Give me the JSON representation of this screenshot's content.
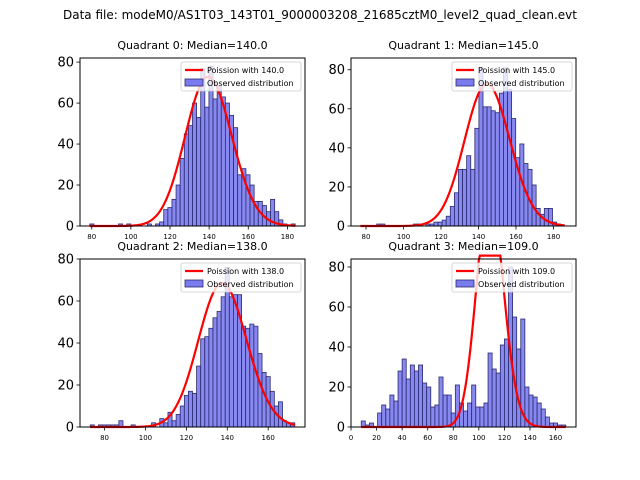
{
  "suptitle": "Data file: modeM0/AS1T03_143T01_9000003208_21685cztM0_level2_quad_clean.evt",
  "legend": {
    "line_label_prefix": "Poission with ",
    "bar_label": "Observed distribution"
  },
  "colors": {
    "bar_fill": "#7b7bf0",
    "bar_edge": "#2b2b6e",
    "poisson_line": "#ff0000"
  },
  "chart_data": [
    {
      "type": "bar",
      "title": "Quadrant 0: Median=140.0",
      "median": 140.0,
      "poisson_label": "Poission with 140.0",
      "bin_start": 79,
      "bin_width": 2.1,
      "values": [
        1,
        0,
        0,
        0,
        0,
        0,
        0,
        1,
        0,
        1,
        0,
        0,
        0,
        0,
        1,
        0,
        1,
        2,
        8,
        9,
        13,
        20,
        33,
        45,
        49,
        60,
        53,
        77,
        58,
        78,
        62,
        68,
        63,
        60,
        54,
        48,
        25,
        28,
        25,
        20,
        12,
        12,
        10,
        7,
        13,
        7,
        3,
        1,
        0,
        1
      ],
      "xlim": [
        74,
        189
      ],
      "ylim": [
        0,
        82
      ],
      "xticks": [
        80,
        100,
        120,
        140,
        160,
        180
      ],
      "yticks": [
        0,
        20,
        40,
        60,
        80
      ],
      "legend": "top-right"
    },
    {
      "type": "bar",
      "title": "Quadrant 1: Median=145.0",
      "median": 145.0,
      "poisson_label": "Poission with 145.0",
      "bin_start": 77,
      "bin_width": 2.18,
      "values": [
        0,
        0,
        0,
        0,
        1,
        1,
        0,
        0,
        0,
        0,
        0,
        0,
        0,
        1,
        1,
        0,
        1,
        1,
        2,
        2,
        3,
        5,
        10,
        17,
        29,
        29,
        36,
        29,
        50,
        81,
        61,
        61,
        59,
        58,
        68,
        81,
        70,
        55,
        35,
        42,
        32,
        29,
        21,
        9,
        6,
        9,
        9,
        2,
        1,
        0
      ],
      "xlim": [
        72,
        192
      ],
      "ylim": [
        0,
        86
      ],
      "xticks": [
        80,
        100,
        120,
        140,
        160,
        180
      ],
      "yticks": [
        0,
        20,
        40,
        60,
        80
      ],
      "legend": "top-right"
    },
    {
      "type": "bar",
      "title": "Quadrant 2: Median=138.0",
      "median": 138.0,
      "poisson_label": "Poission with 138.0",
      "bin_start": 73,
      "bin_width": 2.0,
      "values": [
        1,
        0,
        1,
        1,
        1,
        1,
        1,
        3,
        0,
        0,
        1,
        0,
        0,
        0,
        0,
        2,
        0,
        4,
        2,
        7,
        3,
        6,
        10,
        15,
        17,
        16,
        29,
        42,
        43,
        47,
        52,
        55,
        62,
        76,
        62,
        63,
        63,
        48,
        47,
        49,
        48,
        35,
        26,
        24,
        17,
        10,
        12,
        3,
        2,
        2
      ],
      "xlim": [
        68,
        178
      ],
      "ylim": [
        0,
        80
      ],
      "xticks": [
        80,
        100,
        120,
        140,
        160
      ],
      "yticks": [
        0,
        20,
        40,
        60,
        80
      ],
      "legend": "top-right"
    },
    {
      "type": "bar",
      "title": "Quadrant 3: Median=109.0",
      "median": 109.0,
      "poisson_label": "Poission with 109.0",
      "bin_start": 8,
      "bin_width": 3.2,
      "values": [
        3,
        1,
        2,
        0,
        7,
        11,
        9,
        16,
        13,
        28,
        34,
        24,
        31,
        28,
        31,
        22,
        20,
        10,
        11,
        25,
        16,
        16,
        7,
        21,
        12,
        8,
        12,
        21,
        10,
        10,
        12,
        37,
        29,
        27,
        41,
        44,
        80,
        55,
        39,
        54,
        20,
        16,
        15,
        12,
        9,
        5,
        2,
        2,
        1,
        1
      ],
      "xlim": [
        0,
        176
      ],
      "ylim": [
        0,
        84
      ],
      "xticks": [
        0,
        20,
        40,
        60,
        80,
        100,
        120,
        140,
        160
      ],
      "yticks": [
        0,
        20,
        40,
        60,
        80
      ],
      "legend": "top-right"
    }
  ]
}
